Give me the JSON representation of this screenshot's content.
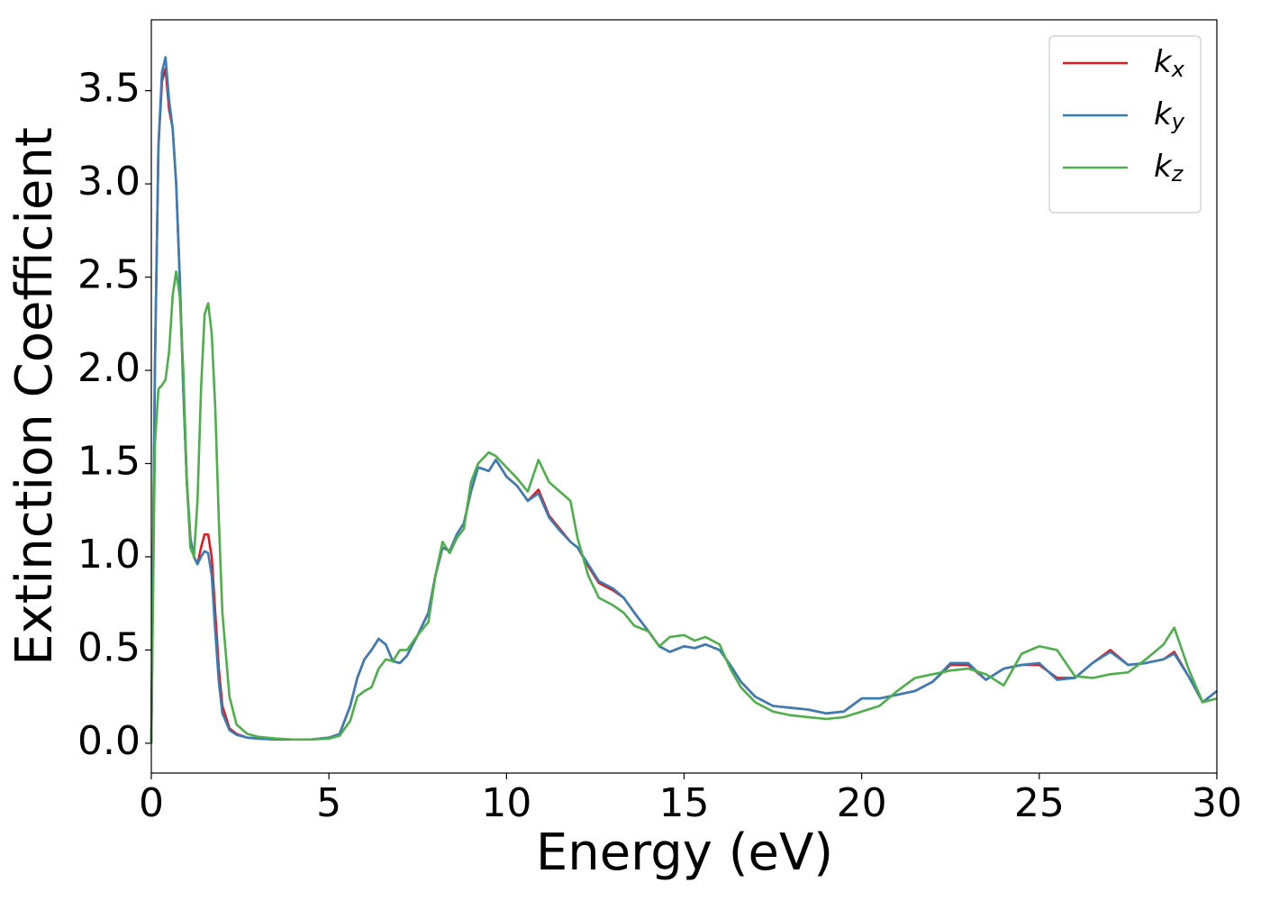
{
  "chart_data": {
    "type": "line",
    "xlabel": "Energy (eV)",
    "ylabel": "Extinction Coefficient",
    "x": [
      0,
      0.1,
      0.2,
      0.3,
      0.4,
      0.5,
      0.6,
      0.7,
      0.8,
      0.9,
      1.0,
      1.1,
      1.2,
      1.3,
      1.4,
      1.5,
      1.6,
      1.7,
      1.8,
      1.9,
      2.0,
      2.2,
      2.4,
      2.7,
      3.0,
      3.5,
      4.0,
      4.5,
      5.0,
      5.3,
      5.6,
      5.8,
      6.0,
      6.2,
      6.4,
      6.6,
      6.8,
      7.0,
      7.2,
      7.5,
      7.8,
      8.0,
      8.2,
      8.4,
      8.6,
      8.8,
      9.0,
      9.2,
      9.5,
      9.7,
      10.0,
      10.3,
      10.6,
      10.9,
      11.2,
      11.5,
      11.8,
      12.0,
      12.3,
      12.6,
      13.0,
      13.3,
      13.6,
      14.0,
      14.3,
      14.6,
      15.0,
      15.3,
      15.6,
      16.0,
      16.3,
      16.6,
      17.0,
      17.5,
      18.0,
      18.5,
      19.0,
      19.5,
      20.0,
      20.5,
      21.0,
      21.5,
      22.0,
      22.5,
      23.0,
      23.5,
      24.0,
      24.5,
      25.0,
      25.5,
      26.0,
      26.5,
      27.0,
      27.5,
      28.0,
      28.5,
      28.8,
      29.2,
      29.6,
      30.0
    ],
    "series": [
      {
        "name": "kx",
        "color": "#e41a1c",
        "values": [
          0,
          2.0,
          3.2,
          3.55,
          3.62,
          3.4,
          3.3,
          3.0,
          2.5,
          1.9,
          1.4,
          1.1,
          1.0,
          0.96,
          1.05,
          1.12,
          1.12,
          1.0,
          0.7,
          0.4,
          0.2,
          0.08,
          0.05,
          0.03,
          0.025,
          0.02,
          0.02,
          0.02,
          0.03,
          0.05,
          0.2,
          0.35,
          0.45,
          0.5,
          0.56,
          0.53,
          0.44,
          0.43,
          0.47,
          0.58,
          0.7,
          0.9,
          1.05,
          1.03,
          1.12,
          1.18,
          1.35,
          1.48,
          1.46,
          1.52,
          1.43,
          1.38,
          1.3,
          1.36,
          1.22,
          1.15,
          1.08,
          1.05,
          0.95,
          0.86,
          0.82,
          0.78,
          0.7,
          0.6,
          0.52,
          0.49,
          0.52,
          0.51,
          0.53,
          0.5,
          0.42,
          0.33,
          0.25,
          0.2,
          0.19,
          0.18,
          0.16,
          0.17,
          0.24,
          0.24,
          0.26,
          0.28,
          0.33,
          0.42,
          0.42,
          0.34,
          0.4,
          0.42,
          0.42,
          0.35,
          0.35,
          0.43,
          0.5,
          0.42,
          0.43,
          0.45,
          0.49,
          0.36,
          0.22,
          0.28
        ]
      },
      {
        "name": "ky",
        "color": "#377eb8",
        "values": [
          0,
          2.0,
          3.2,
          3.6,
          3.68,
          3.45,
          3.3,
          3.0,
          2.5,
          1.9,
          1.4,
          1.1,
          1.0,
          0.96,
          1.0,
          1.03,
          1.02,
          0.9,
          0.6,
          0.33,
          0.16,
          0.07,
          0.045,
          0.03,
          0.025,
          0.02,
          0.02,
          0.02,
          0.03,
          0.05,
          0.2,
          0.35,
          0.45,
          0.5,
          0.56,
          0.53,
          0.44,
          0.43,
          0.47,
          0.58,
          0.7,
          0.9,
          1.05,
          1.03,
          1.12,
          1.18,
          1.35,
          1.48,
          1.46,
          1.52,
          1.43,
          1.38,
          1.3,
          1.34,
          1.21,
          1.14,
          1.08,
          1.05,
          0.96,
          0.87,
          0.83,
          0.78,
          0.7,
          0.6,
          0.52,
          0.49,
          0.52,
          0.51,
          0.53,
          0.5,
          0.42,
          0.33,
          0.25,
          0.2,
          0.19,
          0.18,
          0.16,
          0.17,
          0.24,
          0.24,
          0.26,
          0.28,
          0.33,
          0.43,
          0.43,
          0.34,
          0.4,
          0.42,
          0.43,
          0.34,
          0.35,
          0.43,
          0.49,
          0.42,
          0.43,
          0.45,
          0.48,
          0.36,
          0.22,
          0.28
        ]
      },
      {
        "name": "kz",
        "color": "#4daf4a",
        "values": [
          0,
          1.6,
          1.9,
          1.92,
          1.95,
          2.1,
          2.4,
          2.53,
          2.4,
          2.0,
          1.4,
          1.05,
          1.0,
          1.3,
          1.9,
          2.3,
          2.36,
          2.2,
          1.8,
          1.2,
          0.7,
          0.25,
          0.1,
          0.05,
          0.035,
          0.025,
          0.02,
          0.02,
          0.025,
          0.04,
          0.12,
          0.25,
          0.28,
          0.3,
          0.4,
          0.45,
          0.44,
          0.5,
          0.5,
          0.58,
          0.65,
          0.9,
          1.08,
          1.02,
          1.1,
          1.15,
          1.4,
          1.5,
          1.56,
          1.54,
          1.48,
          1.42,
          1.35,
          1.52,
          1.4,
          1.35,
          1.3,
          1.1,
          0.9,
          0.78,
          0.74,
          0.7,
          0.63,
          0.6,
          0.52,
          0.57,
          0.58,
          0.55,
          0.57,
          0.53,
          0.4,
          0.3,
          0.22,
          0.17,
          0.15,
          0.14,
          0.13,
          0.14,
          0.17,
          0.2,
          0.28,
          0.35,
          0.37,
          0.39,
          0.4,
          0.37,
          0.31,
          0.48,
          0.52,
          0.5,
          0.36,
          0.35,
          0.37,
          0.38,
          0.45,
          0.53,
          0.62,
          0.4,
          0.22,
          0.24
        ]
      }
    ],
    "xlim": [
      0,
      30
    ],
    "ylim": [
      -0.16,
      3.88
    ],
    "xticks": [
      0,
      5,
      10,
      15,
      20,
      25,
      30
    ],
    "yticks": [
      {
        "value": 0,
        "label": "0.0"
      },
      {
        "value": 0.5,
        "label": "0.5"
      },
      {
        "value": 1,
        "label": "1.0"
      },
      {
        "value": 1.5,
        "label": "1.5"
      },
      {
        "value": 2,
        "label": "2.0"
      },
      {
        "value": 2.5,
        "label": "2.5"
      },
      {
        "value": 3,
        "label": "3.0"
      },
      {
        "value": 3.5,
        "label": "3.5"
      }
    ],
    "grid": false,
    "legend": "upper right"
  }
}
